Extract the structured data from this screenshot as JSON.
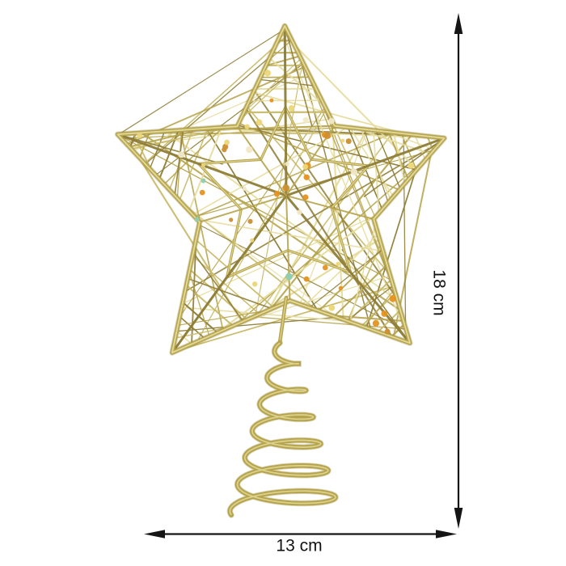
{
  "figure": {
    "subject": "gold-glitter-star-tree-topper-with-spiral-base",
    "height_label": "18 cm",
    "width_label": "13 cm",
    "colors": {
      "background": "#ffffff",
      "gold_main": "#b7a54e",
      "gold_mid": "#c9ba6a",
      "gold_dark": "#8f7e38",
      "gold_light": "#e6dd9f",
      "sequin_orange": "#e5921f",
      "sequin_amber": "#cf8f2e",
      "sequin_yellow": "#ecd677",
      "sequin_teal": "#8fcdb0",
      "sequin_pearl": "#f1e8c8",
      "dimension": "#151515"
    }
  }
}
